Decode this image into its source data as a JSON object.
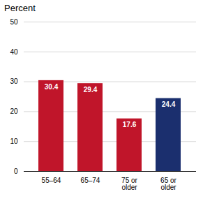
{
  "chart_data": {
    "type": "bar",
    "title": "Percent",
    "categories": [
      "55–64",
      "65–74",
      "75 or\nolder",
      "65 or\nolder"
    ],
    "values": [
      30.4,
      29.4,
      17.6,
      24.4
    ],
    "colors": [
      "#c0152a",
      "#c0152a",
      "#c0152a",
      "#1b2f6e"
    ],
    "ylim": [
      0,
      50
    ],
    "yticks": [
      0,
      10,
      20,
      30,
      40,
      50
    ],
    "grid": true,
    "data_labels": true
  }
}
